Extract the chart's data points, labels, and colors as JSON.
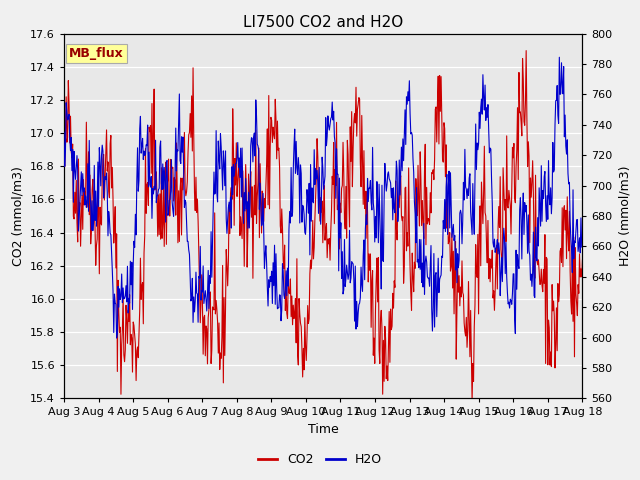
{
  "title": "LI7500 CO2 and H2O",
  "xlabel": "Time",
  "ylabel_left": "CO2 (mmol/m3)",
  "ylabel_right": "H2O (mmol/m3)",
  "co2_ylim": [
    15.4,
    17.6
  ],
  "h2o_ylim": [
    560,
    800
  ],
  "co2_yticks": [
    15.4,
    15.6,
    15.8,
    16.0,
    16.2,
    16.4,
    16.6,
    16.8,
    17.0,
    17.2,
    17.4,
    17.6
  ],
  "h2o_yticks": [
    560,
    580,
    600,
    620,
    640,
    660,
    680,
    700,
    720,
    740,
    760,
    780,
    800
  ],
  "xtick_labels": [
    "Aug 3",
    "Aug 4",
    "Aug 5",
    "Aug 6",
    "Aug 7",
    "Aug 8",
    "Aug 9",
    "Aug 10",
    "Aug 11",
    "Aug 12",
    "Aug 13",
    "Aug 14",
    "Aug 15",
    "Aug 16",
    "Aug 17",
    "Aug 18"
  ],
  "co2_color": "#CC0000",
  "h2o_color": "#0000CC",
  "fig_bg_color": "#F0F0F0",
  "plot_bg_color": "#E8E8E8",
  "grid_color": "#FFFFFF",
  "legend_label_co2": "CO2",
  "legend_label_h2o": "H2O",
  "annotation_text": "MB_flux",
  "annotation_bg": "#FFFF99",
  "annotation_border": "#AAAAAA",
  "seed": 42,
  "n_points": 720,
  "title_fontsize": 11,
  "axis_label_fontsize": 9,
  "tick_fontsize": 8,
  "legend_fontsize": 9
}
